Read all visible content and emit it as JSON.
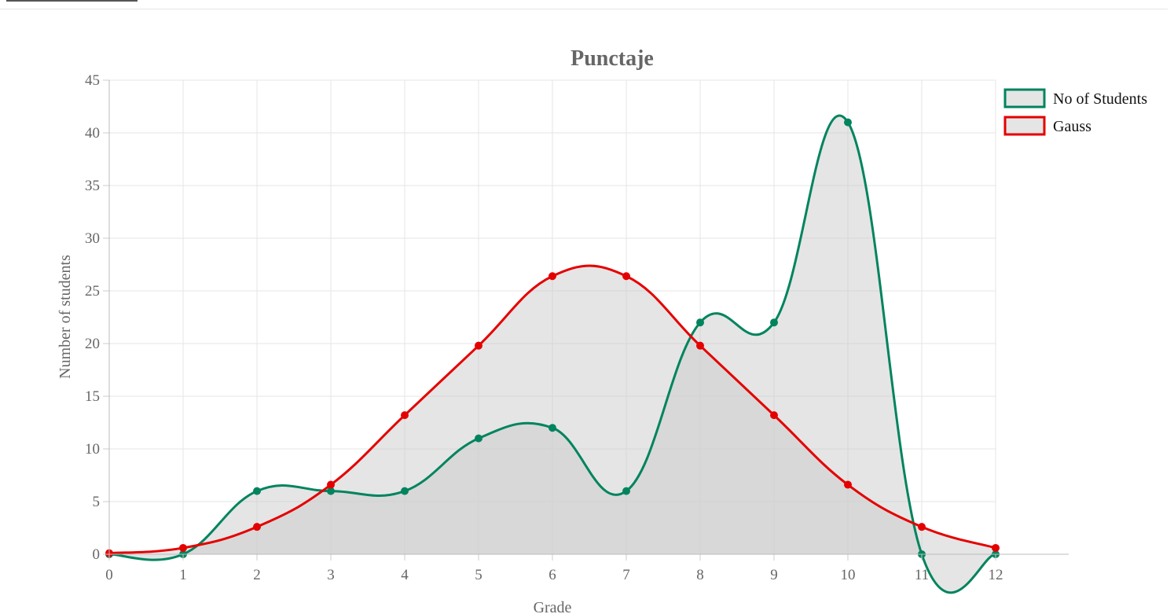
{
  "chart_data": {
    "type": "line",
    "title": "Punctaje",
    "xlabel": "Grade",
    "ylabel": "Number of students",
    "x": [
      0,
      1,
      2,
      3,
      4,
      5,
      6,
      7,
      8,
      9,
      10,
      11,
      12
    ],
    "ylim": [
      0,
      45
    ],
    "y_ticks": [
      0,
      5,
      10,
      15,
      20,
      25,
      30,
      35,
      40,
      45
    ],
    "grid": true,
    "legend_position": "top-right",
    "fill_color": "#cccccc",
    "series": [
      {
        "name": "No of Students",
        "color": "#00845e",
        "values": [
          0,
          0,
          6,
          6,
          6,
          11,
          12,
          6,
          22,
          22,
          41,
          0,
          0
        ]
      },
      {
        "name": "Gauss",
        "color": "#e50000",
        "values": [
          0.1,
          0.6,
          2.6,
          6.6,
          13.2,
          19.8,
          26.4,
          26.4,
          19.8,
          13.2,
          6.6,
          2.6,
          0.6
        ]
      }
    ]
  }
}
